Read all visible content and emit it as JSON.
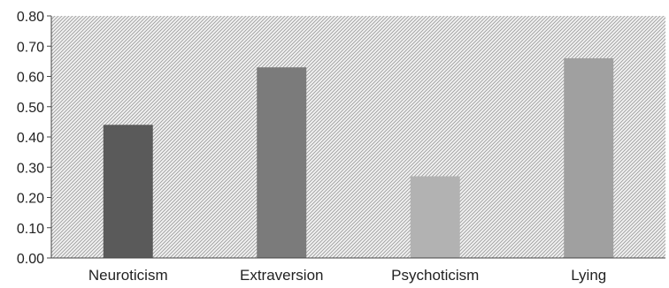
{
  "chart_data": {
    "type": "bar",
    "categories": [
      "Neuroticism",
      "Extraversion",
      "Psychoticism",
      "Lying"
    ],
    "values": [
      0.44,
      0.63,
      0.27,
      0.66
    ],
    "ylim": [
      0,
      0.8
    ],
    "yticks": [
      "0.00",
      "0.10",
      "0.20",
      "0.30",
      "0.40",
      "0.50",
      "0.60",
      "0.70",
      "0.80"
    ],
    "title": "",
    "xlabel": "",
    "ylabel": "",
    "grid": false,
    "legend": "none",
    "bar_colors": [
      "#5a5a5a",
      "#7b7b7b",
      "#b2b2b2",
      "#a0a0a0"
    ],
    "plot_background": "hatched light gray"
  }
}
